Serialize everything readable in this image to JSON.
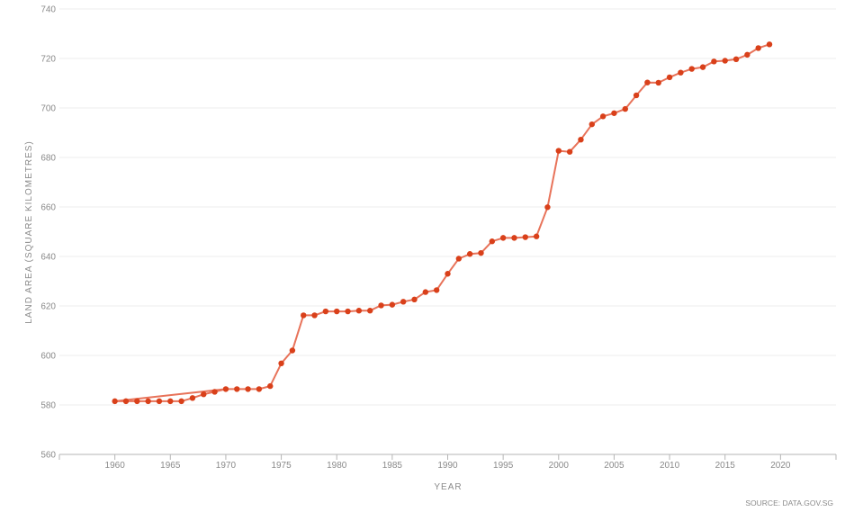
{
  "chart_data": {
    "type": "line",
    "title": "",
    "xlabel": "YEAR",
    "ylabel": "LAND AREA (SQUARE KILOMETRES)",
    "source": "SOURCE: DATA.GOV.SG",
    "xlim": [
      1955,
      2025
    ],
    "ylim": [
      560,
      740
    ],
    "x_ticks": [
      "1960",
      "1965",
      "1970",
      "1975",
      "1980",
      "1985",
      "1990",
      "1995",
      "2000",
      "2005",
      "2010",
      "2015",
      "2020"
    ],
    "y_ticks": [
      "560",
      "580",
      "600",
      "620",
      "640",
      "660",
      "680",
      "700",
      "720",
      "740"
    ],
    "grid": true,
    "line_color": "#e8735a",
    "marker_color": "#d9401a",
    "series": [
      {
        "x": [
          1960,
          1961,
          1962,
          1963,
          1964,
          1965,
          1966,
          1967,
          1968,
          1969,
          1970,
          1971,
          1972,
          1973,
          1974,
          1975,
          1976,
          1977,
          1978,
          1979,
          1980,
          1981,
          1982,
          1983,
          1984,
          1985,
          1986,
          1987,
          1988,
          1989,
          1990,
          1991,
          1992,
          1993,
          1994,
          1995,
          1996,
          1997,
          1998,
          1999,
          2000,
          2001,
          2002,
          2003,
          2004,
          2005,
          2006,
          2007,
          2008,
          2009,
          2010,
          2011,
          2012,
          2013,
          2014,
          2015,
          2016,
          2017,
          2018,
          2019
        ],
        "values": [
          581.5,
          581.5,
          581.5,
          581.5,
          581.5,
          581.5,
          581.5,
          582.8,
          584.3,
          585.3,
          586.4,
          586.4,
          586.4,
          586.4,
          587.6,
          596.8,
          602.0,
          616.2,
          616.2,
          617.8,
          617.8,
          617.8,
          618.1,
          618.1,
          620.2,
          620.5,
          621.7,
          622.6,
          625.6,
          626.4,
          633.0,
          639.1,
          641.0,
          641.4,
          646.1,
          647.5,
          647.5,
          647.8,
          648.1,
          659.9,
          682.7,
          682.3,
          687.2,
          693.4,
          696.6,
          697.9,
          699.6,
          705.1,
          710.3,
          710.2,
          712.4,
          714.3,
          715.8,
          716.5,
          718.8,
          719.1,
          719.7,
          721.5,
          724.2,
          725.7
        ]
      }
    ]
  }
}
